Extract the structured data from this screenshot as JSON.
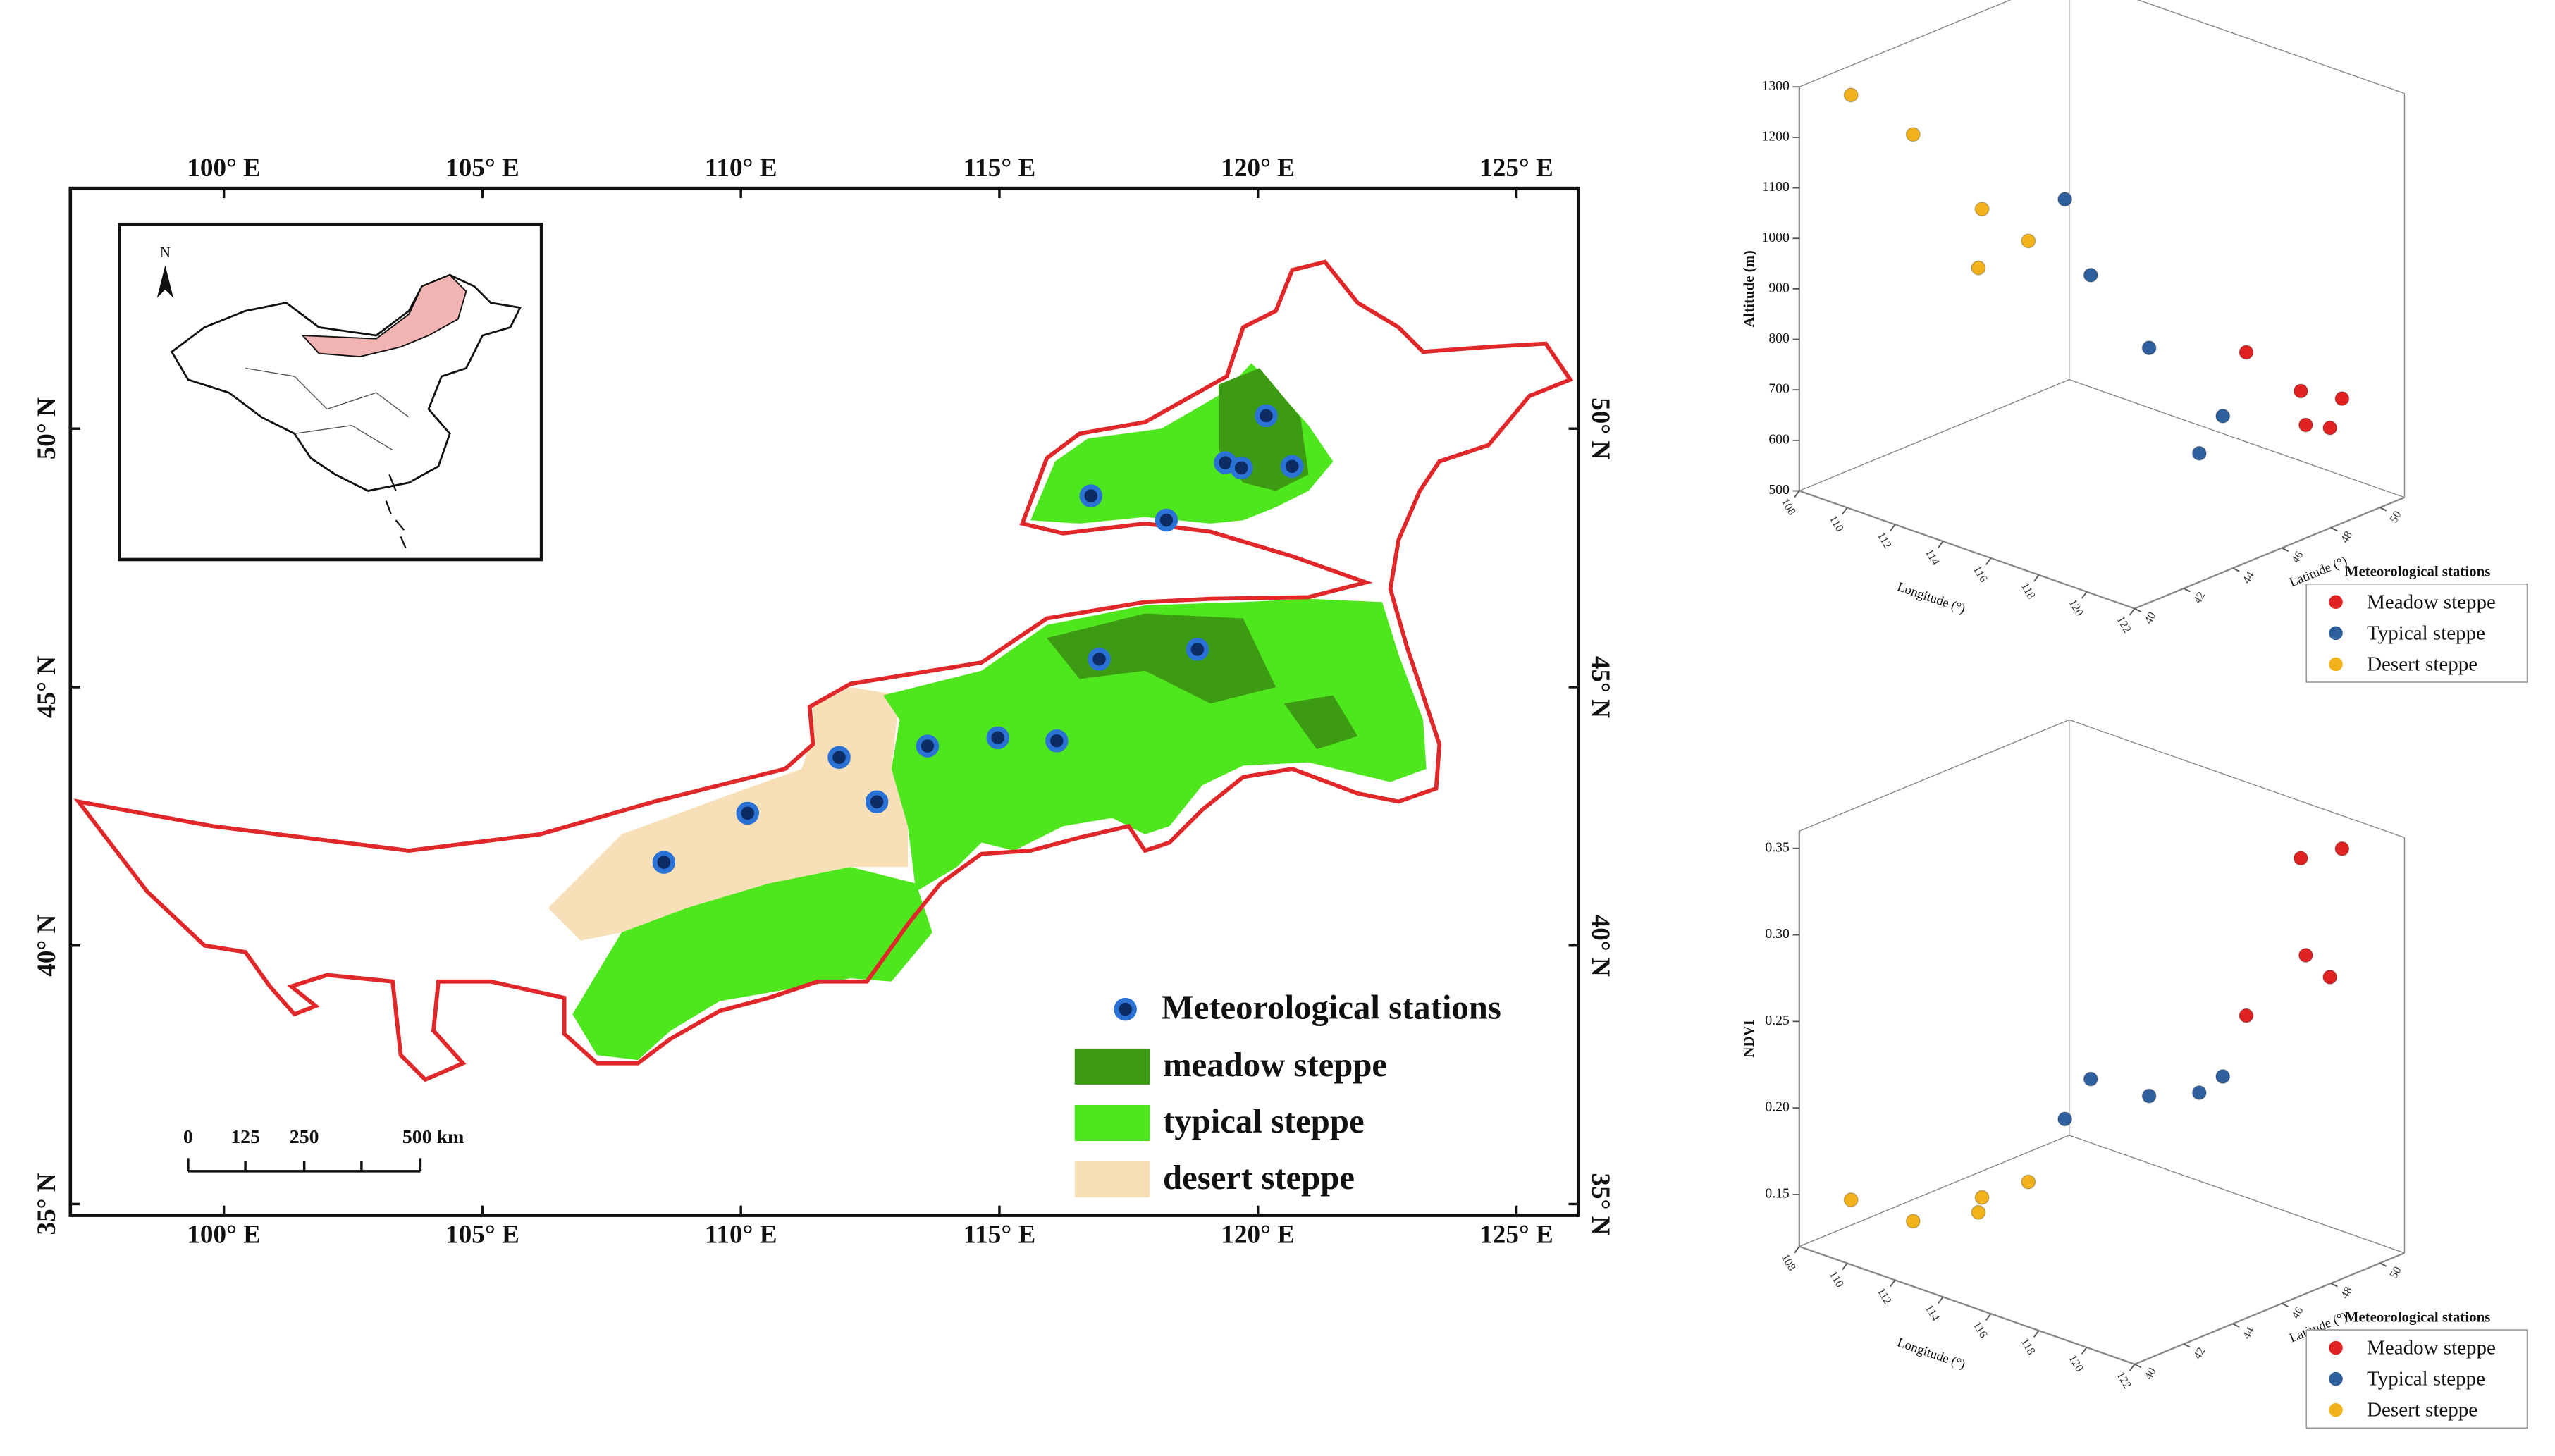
{
  "map": {
    "xlim": [
      97.03,
      126.2
    ],
    "ylim": [
      34.78,
      54.65
    ],
    "xticks": [
      {
        "value": 100,
        "label": "100° E"
      },
      {
        "value": 105,
        "label": "105° E"
      },
      {
        "value": 110,
        "label": "110° E"
      },
      {
        "value": 115,
        "label": "115° E"
      },
      {
        "value": 120,
        "label": "120° E"
      },
      {
        "value": 125,
        "label": "125° E"
      }
    ],
    "yticks": [
      {
        "value": 35,
        "label": "35° N"
      },
      {
        "value": 40,
        "label": "40° N"
      },
      {
        "value": 45,
        "label": "45° N"
      },
      {
        "value": 50,
        "label": "50° N"
      }
    ],
    "stations": {
      "name": "Meteorological stations",
      "color": "#2a72d6",
      "lon": [
        120.16,
        119.37,
        119.68,
        120.66,
        116.77,
        118.23,
        116.93,
        118.83,
        111.9,
        113.61,
        114.97,
        116.11,
        112.63,
        110.13,
        108.51
      ],
      "lat": [
        50.25,
        49.34,
        49.24,
        49.27,
        48.7,
        48.23,
        45.54,
        45.73,
        43.64,
        43.86,
        44.02,
        43.96,
        42.78,
        42.56,
        41.61
      ]
    },
    "legend": [
      {
        "name": "meadow steppe",
        "color": "#3c9b12"
      },
      {
        "name": "typical steppe",
        "color": "#4ee61c"
      },
      {
        "name": "desert steppe",
        "color": "#f7e0b8"
      }
    ],
    "scale_bar": [
      "0",
      "125",
      "250",
      "500 km"
    ],
    "inset": {
      "north": "N"
    }
  },
  "chart_data": [
    {
      "type": "scatter3d",
      "xlabel": "Longitude (°)",
      "ylabel": "Latitude (°)",
      "zlabel": "Altitude (m)",
      "xlim": [
        108,
        122
      ],
      "xticks": [
        108,
        110,
        112,
        114,
        116,
        118,
        120,
        122
      ],
      "ylim": [
        40,
        51
      ],
      "yticks": [
        40,
        42,
        44,
        46,
        48,
        50
      ],
      "zlim": [
        500,
        1300
      ],
      "zticks": [
        500,
        600,
        700,
        800,
        900,
        1000,
        1100,
        1200,
        1300
      ],
      "legend_title": "Meteorological stations",
      "series": [
        {
          "name": "Meadow steppe",
          "color": "#e02222",
          "x": [
            120.16,
            119.37,
            119.68,
            120.66,
            118.23
          ],
          "y": [
            50.25,
            49.34,
            49.24,
            49.27,
            48.23
          ],
          "z": [
            680,
            700,
            640,
            650,
            780
          ]
        },
        {
          "name": "Typical steppe",
          "color": "#2f5f9c",
          "x": [
            114.97,
            116.11,
            116.93,
            118.83,
            116.77
          ],
          "y": [
            44.02,
            43.96,
            45.54,
            45.73,
            48.7
          ],
          "z": [
            1113,
            983,
            821,
            640,
            620
          ]
        },
        {
          "name": "Desert steppe",
          "color": "#f2b21b",
          "x": [
            108.51,
            110.13,
            111.9,
            112.63,
            113.61
          ],
          "y": [
            41.61,
            42.56,
            43.64,
            42.78,
            43.86
          ],
          "z": [
            1260,
            1190,
            1050,
            963,
            1011
          ]
        }
      ]
    },
    {
      "type": "scatter3d",
      "xlabel": "Longitude (°)",
      "ylabel": "Latitude (°)",
      "zlabel": "NDVI",
      "xlim": [
        108,
        122
      ],
      "xticks": [
        108,
        110,
        112,
        114,
        116,
        118,
        120,
        122
      ],
      "ylim": [
        40,
        51
      ],
      "yticks": [
        40,
        42,
        44,
        46,
        48,
        50
      ],
      "zlim": [
        0.12,
        0.36
      ],
      "zticks": [
        0.15,
        {
          "value": 0.2,
          "label": "0.20"
        },
        0.25,
        {
          "value": 0.3,
          "label": "0.30"
        },
        0.35
      ],
      "legend_title": "Meteorological stations",
      "series": [
        {
          "name": "Meadow steppe",
          "color": "#e02222",
          "x": [
            120.16,
            119.37,
            119.68,
            120.66,
            118.23
          ],
          "y": [
            50.25,
            49.34,
            49.24,
            49.27,
            48.23
          ],
          "z": [
            0.349,
            0.345,
            0.291,
            0.283,
            0.255
          ]
        },
        {
          "name": "Typical steppe",
          "color": "#2f5f9c",
          "x": [
            114.97,
            116.11,
            116.93,
            118.83,
            116.77
          ],
          "y": [
            44.02,
            43.96,
            45.54,
            45.73,
            48.7
          ],
          "z": [
            0.204,
            0.233,
            0.218,
            0.228,
            0.21
          ]
        },
        {
          "name": "Desert steppe",
          "color": "#f2b21b",
          "x": [
            108.51,
            110.13,
            111.9,
            112.63,
            113.61
          ],
          "y": [
            41.61,
            42.56,
            43.64,
            42.78,
            43.86
          ],
          "z": [
            0.14,
            0.13,
            0.146,
            0.146,
            0.162
          ]
        }
      ]
    }
  ]
}
